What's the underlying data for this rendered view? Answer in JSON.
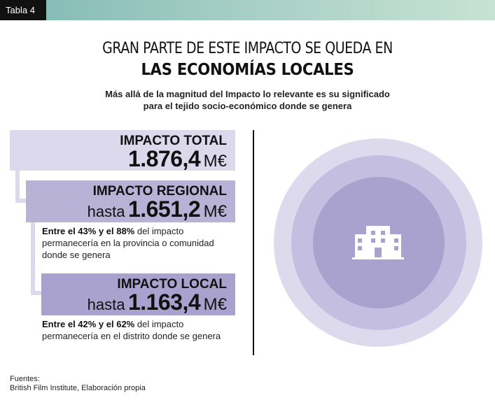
{
  "header": {
    "tag": "Tabla 4"
  },
  "title": {
    "line1": "GRAN PARTE DE ESTE IMPACTO SE QUEDA EN",
    "line2": "LAS ECONOMÍAS LOCALES"
  },
  "subtitle": {
    "line1": "Más allá de la magnitud del Impacto lo relevante es su significado",
    "line2": "para el tejido socio-económico donde se genera"
  },
  "impacts": {
    "total": {
      "label": "IMPACTO TOTAL",
      "prefix": "",
      "value": "1.876,4",
      "unit": "M€"
    },
    "regional": {
      "label": "IMPACTO REGIONAL",
      "prefix": "hasta",
      "value": "1.651,2",
      "unit": "M€",
      "note_bold": "Entre el 43% y el 88%",
      "note_rest": "del impacto permanecería en la provincia o comunidad donde se genera"
    },
    "local": {
      "label": "IMPACTO LOCAL",
      "prefix": "hasta",
      "value": "1.163,4",
      "unit": "M€",
      "note_bold": "Entre el 42% y el 62%",
      "note_rest": "del impacto permanecería en el distrito donde se genera"
    }
  },
  "graphic": {
    "icon": "building-icon",
    "ring_colors": [
      "#dedaee",
      "#c4bee0",
      "#aaa2ce"
    ]
  },
  "sources": {
    "label": "Fuentes:",
    "text": "British Film Institute, Elaboración propia"
  },
  "colors": {
    "accent_dark": "#111111",
    "gradient_start": "#7fb9b3",
    "gradient_end": "#c7e3d2",
    "box_total": "#dcd9ec",
    "box_regional": "#b8b2d6",
    "box_local": "#aaa2ce"
  }
}
